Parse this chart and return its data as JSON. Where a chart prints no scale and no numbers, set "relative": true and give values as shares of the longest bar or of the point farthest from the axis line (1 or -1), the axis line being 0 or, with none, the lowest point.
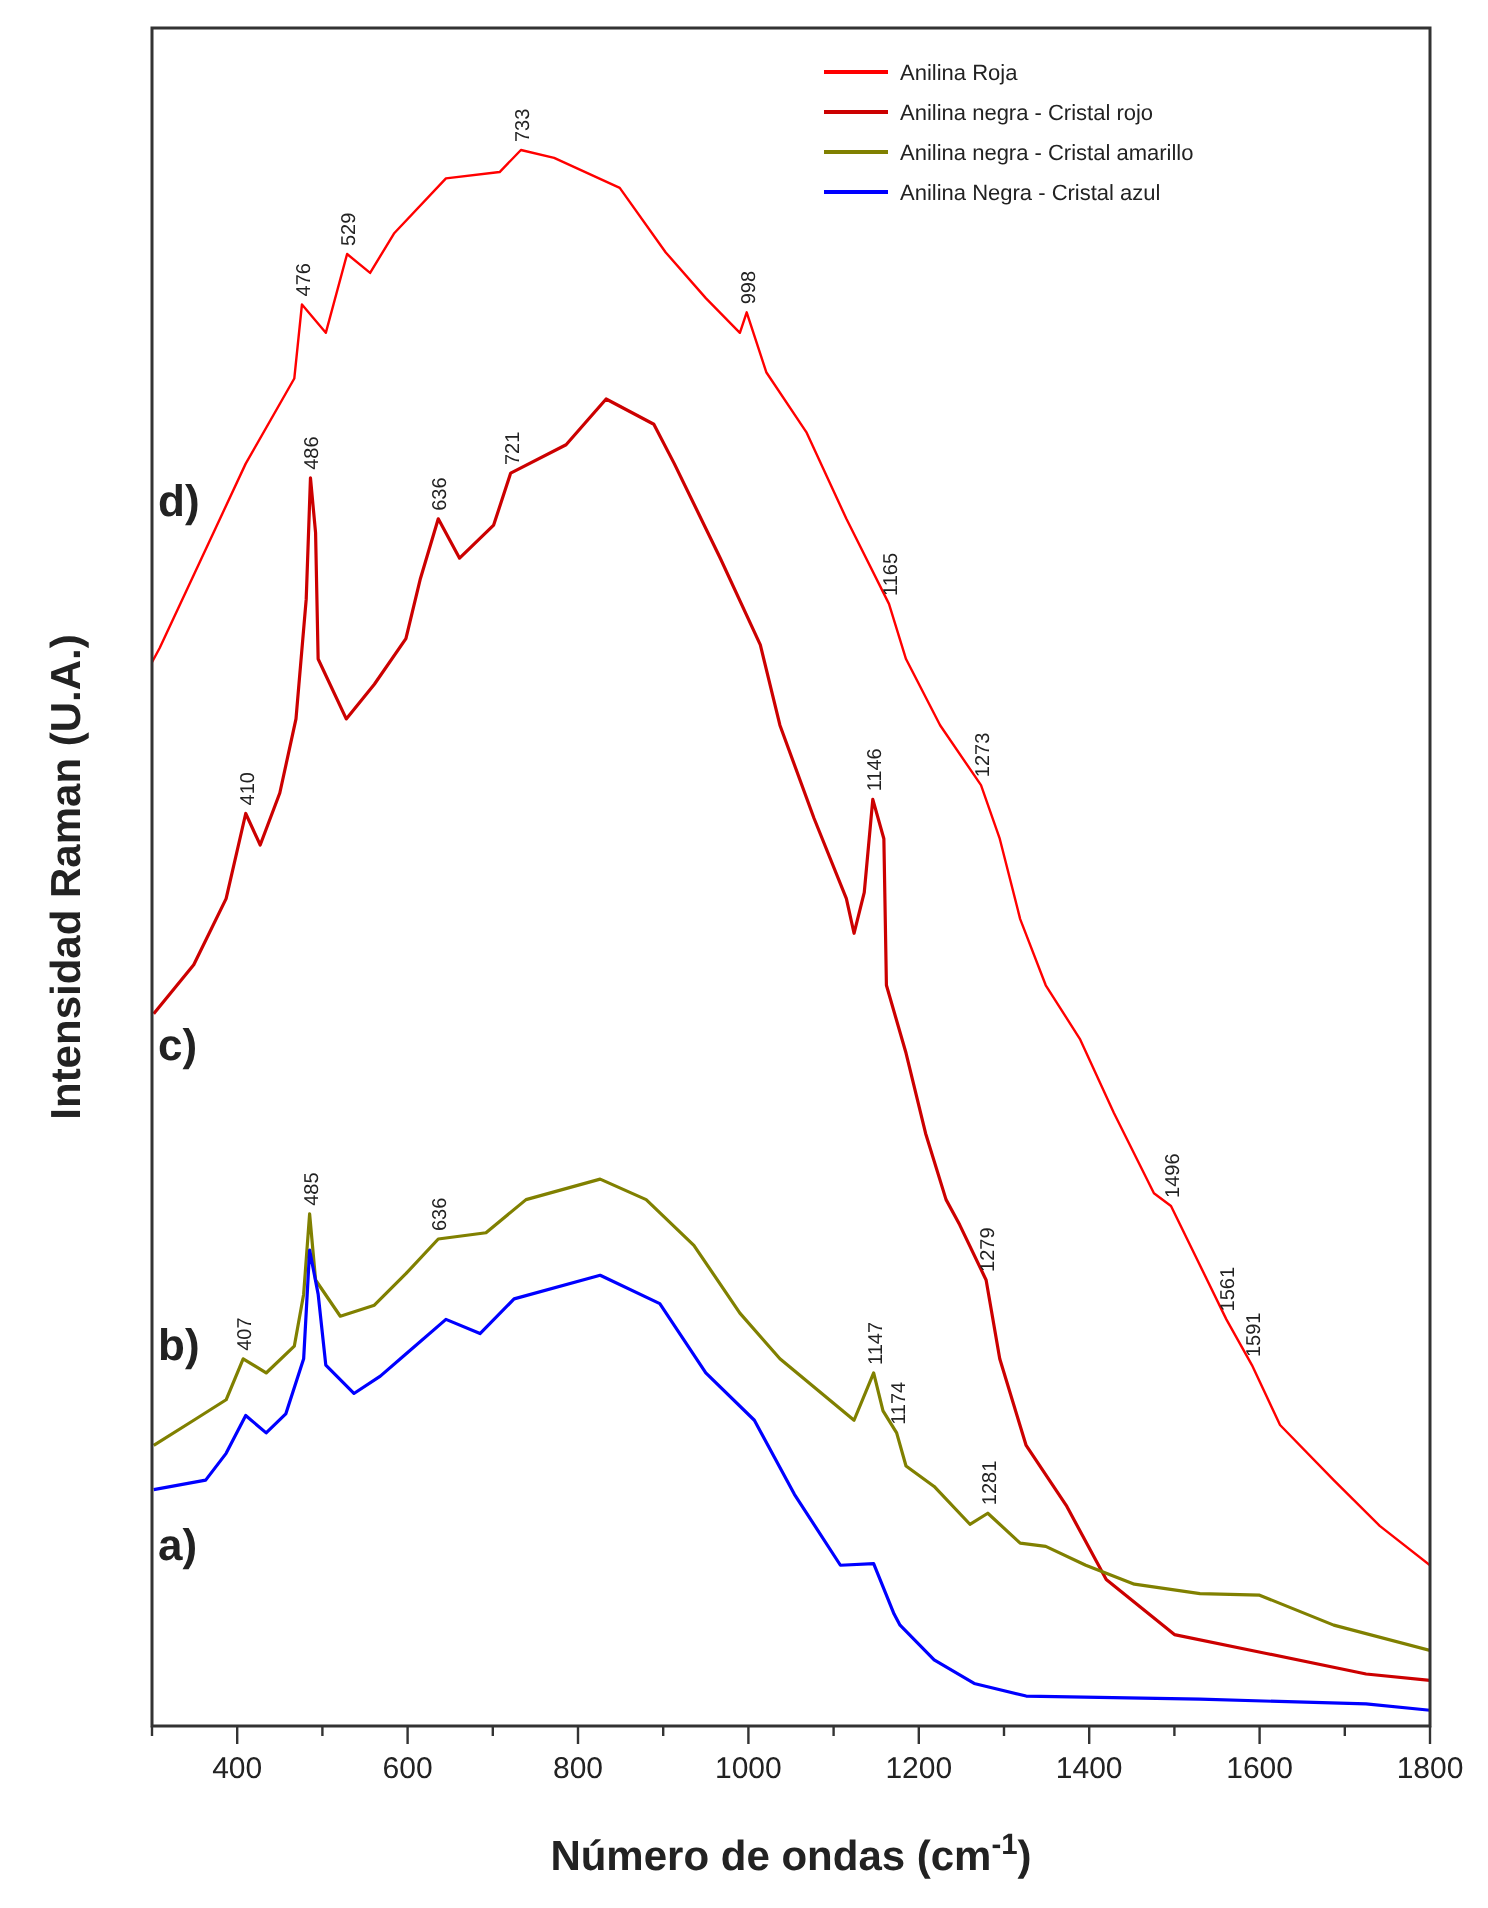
{
  "chart_data": {
    "type": "line",
    "relative": true,
    "xlabel": "Número de ondas (cm$^{-1}$)",
    "ylabel": "Intensidad Raman (U.A.)",
    "xlim": [
      300,
      1800
    ],
    "xticks": [
      {
        "value": 300,
        "label": null
      },
      400,
      {
        "value": 500,
        "label": null
      },
      600,
      {
        "value": 700,
        "label": null
      },
      800,
      {
        "value": 900,
        "label": null
      },
      1000,
      {
        "value": 1100,
        "label": null
      },
      1200,
      {
        "value": 1300,
        "label": null
      },
      1400,
      {
        "value": 1500,
        "label": null
      },
      1600,
      {
        "value": 1700,
        "label": null
      },
      1800
    ],
    "legend": "top right",
    "grid": false,
    "marker": "none",
    "line_style": "solid",
    "series": [
      {
        "name": "Anilina Roja",
        "color": "#ff0000",
        "x": [
          300,
          309,
          410,
          467,
          476,
          504,
          529,
          556,
          584,
          645,
          708,
          733,
          772,
          849,
          903,
          950,
          990,
          998,
          1021,
          1068,
          1115,
          1165,
          1185,
          1225,
          1273,
          1295,
          1319,
          1349,
          1389,
          1429,
          1476,
          1496,
          1561,
          1591,
          1624,
          1687,
          1741,
          1800
        ],
        "values": [
          0.675,
          0.684,
          0.801,
          0.855,
          0.902,
          0.884,
          0.934,
          0.922,
          0.947,
          0.982,
          0.986,
          1.0,
          0.995,
          0.976,
          0.935,
          0.906,
          0.884,
          0.897,
          0.859,
          0.821,
          0.766,
          0.712,
          0.677,
          0.635,
          0.597,
          0.563,
          0.512,
          0.47,
          0.436,
          0.389,
          0.338,
          0.33,
          0.258,
          0.229,
          0.191,
          0.156,
          0.127,
          0.102
        ]
      },
      {
        "name": "Anilina negra - Cristal rojo",
        "color": "#cc0000",
        "x": [
          302,
          349,
          387,
          410,
          427,
          450,
          469,
          481,
          486,
          492,
          495,
          528,
          561,
          598,
          615,
          636,
          661,
          701,
          721,
          786,
          833,
          889,
          913,
          967,
          1014,
          1037,
          1077,
          1115,
          1124,
          1136,
          1146,
          1159,
          1162,
          1185,
          1208,
          1232,
          1248,
          1279,
          1295,
          1326,
          1373,
          1420,
          1500,
          1608,
          1725,
          1800
        ],
        "values": [
          0.452,
          0.483,
          0.525,
          0.579,
          0.559,
          0.592,
          0.639,
          0.715,
          0.792,
          0.757,
          0.677,
          0.639,
          0.661,
          0.69,
          0.728,
          0.766,
          0.741,
          0.762,
          0.795,
          0.813,
          0.842,
          0.826,
          0.801,
          0.741,
          0.686,
          0.635,
          0.576,
          0.525,
          0.503,
          0.529,
          0.588,
          0.563,
          0.47,
          0.427,
          0.376,
          0.334,
          0.318,
          0.283,
          0.233,
          0.178,
          0.14,
          0.093,
          0.058,
          0.046,
          0.033,
          0.029
        ]
      },
      {
        "name": "Anilina negra - Cristal amarillo",
        "color": "#808000",
        "x": [
          302,
          349,
          387,
          407,
          434,
          467,
          478,
          485,
          492,
          521,
          561,
          598,
          636,
          692,
          739,
          826,
          880,
          936,
          990,
          1037,
          1124,
          1147,
          1158,
          1174,
          1185,
          1218,
          1260,
          1281,
          1319,
          1349,
          1396,
          1453,
          1530,
          1600,
          1687,
          1800
        ],
        "values": [
          0.178,
          0.194,
          0.207,
          0.233,
          0.224,
          0.241,
          0.274,
          0.325,
          0.283,
          0.26,
          0.267,
          0.287,
          0.309,
          0.313,
          0.334,
          0.347,
          0.334,
          0.305,
          0.262,
          0.233,
          0.194,
          0.224,
          0.2,
          0.186,
          0.165,
          0.152,
          0.128,
          0.135,
          0.116,
          0.114,
          0.102,
          0.09,
          0.084,
          0.083,
          0.064,
          0.048
        ]
      },
      {
        "name": "Anilina Negra - Cristal azul",
        "color": "#0000ff",
        "x": [
          302,
          363,
          387,
          410,
          434,
          457,
          478,
          485,
          495,
          504,
          537,
          568,
          598,
          645,
          685,
          725,
          826,
          896,
          950,
          1007,
          1054,
          1108,
          1147,
          1171,
          1178,
          1218,
          1265,
          1326,
          1530,
          1725,
          1800
        ],
        "values": [
          0.15,
          0.156,
          0.173,
          0.197,
          0.186,
          0.198,
          0.233,
          0.302,
          0.274,
          0.229,
          0.211,
          0.222,
          0.236,
          0.258,
          0.249,
          0.271,
          0.286,
          0.268,
          0.224,
          0.194,
          0.147,
          0.102,
          0.103,
          0.071,
          0.064,
          0.042,
          0.027,
          0.019,
          0.017,
          0.014,
          0.01
        ]
      }
    ],
    "annotations": [
      "d)",
      "c)",
      "b)",
      "a)",
      {
        "text": "476",
        "x": 476,
        "y": 0.902
      },
      {
        "text": "529",
        "x": 529,
        "y": 0.934
      },
      {
        "text": "733",
        "x": 733,
        "y": 1.0
      },
      {
        "text": "998",
        "x": 998,
        "y": 0.897
      },
      {
        "text": "1165",
        "x": 1165,
        "y": 0.712
      },
      {
        "text": "1273",
        "x": 1273,
        "y": 0.597
      },
      {
        "text": "1496",
        "x": 1496,
        "y": 0.33
      },
      {
        "text": "1561",
        "x": 1561,
        "y": 0.258
      },
      {
        "text": "1591",
        "x": 1591,
        "y": 0.229
      },
      {
        "text": "410",
        "x": 410,
        "y": 0.579
      },
      {
        "text": "486",
        "x": 486,
        "y": 0.792
      },
      {
        "text": "636",
        "x": 636,
        "y": 0.766
      },
      {
        "text": "721",
        "x": 721,
        "y": 0.795
      },
      {
        "text": "1146",
        "x": 1146,
        "y": 0.588
      },
      {
        "text": "1279",
        "x": 1279,
        "y": 0.283
      },
      {
        "text": "407",
        "x": 407,
        "y": 0.233
      },
      {
        "text": "485",
        "x": 485,
        "y": 0.325
      },
      {
        "text": "636",
        "x": 636,
        "y": 0.309
      },
      {
        "text": "1147",
        "x": 1147,
        "y": 0.224
      },
      {
        "text": "1174",
        "x": 1174,
        "y": 0.186
      },
      {
        "text": "1281",
        "x": 1281,
        "y": 0.135
      }
    ]
  }
}
